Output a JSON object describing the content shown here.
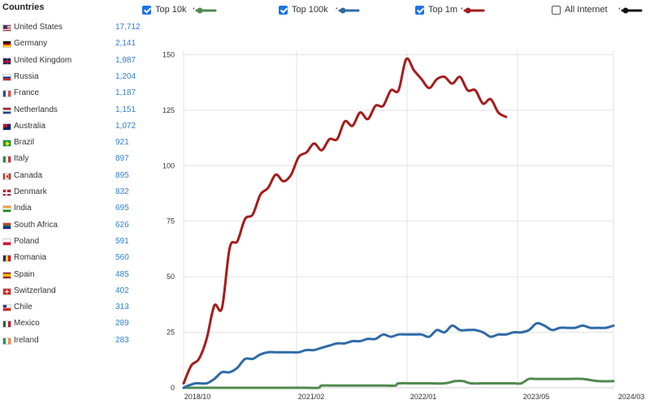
{
  "sidebar": {
    "title": "Countries",
    "countries": [
      {
        "name": "United States",
        "count": "17,712",
        "flag": "us"
      },
      {
        "name": "Germany",
        "count": "2,141",
        "flag": "de"
      },
      {
        "name": "United Kingdom",
        "count": "1,987",
        "flag": "gb"
      },
      {
        "name": "Russia",
        "count": "1,204",
        "flag": "ru"
      },
      {
        "name": "France",
        "count": "1,187",
        "flag": "fr"
      },
      {
        "name": "Netherlands",
        "count": "1,151",
        "flag": "nl"
      },
      {
        "name": "Australia",
        "count": "1,072",
        "flag": "au"
      },
      {
        "name": "Brazil",
        "count": "921",
        "flag": "br"
      },
      {
        "name": "Italy",
        "count": "897",
        "flag": "it"
      },
      {
        "name": "Canada",
        "count": "895",
        "flag": "ca"
      },
      {
        "name": "Denmark",
        "count": "832",
        "flag": "dk"
      },
      {
        "name": "India",
        "count": "695",
        "flag": "in"
      },
      {
        "name": "South Africa",
        "count": "626",
        "flag": "za"
      },
      {
        "name": "Poland",
        "count": "591",
        "flag": "pl"
      },
      {
        "name": "Romania",
        "count": "560",
        "flag": "ro"
      },
      {
        "name": "Spain",
        "count": "485",
        "flag": "es"
      },
      {
        "name": "Switzerland",
        "count": "402",
        "flag": "ch"
      },
      {
        "name": "Chile",
        "count": "313",
        "flag": "cl"
      },
      {
        "name": "Mexico",
        "count": "289",
        "flag": "mx"
      },
      {
        "name": "Ireland",
        "count": "283",
        "flag": "ie"
      }
    ]
  },
  "legend": [
    {
      "label": "Top 10k",
      "checked": true,
      "color": "#4f8a4f"
    },
    {
      "label": "Top 100k",
      "checked": true,
      "color": "#2e6aa8"
    },
    {
      "label": "Top 1m",
      "checked": true,
      "color": "#a51c1c"
    },
    {
      "label": "All Internet",
      "checked": false,
      "color": "#111111"
    }
  ],
  "chart_data": {
    "type": "line",
    "x_tick_labels": [
      "2018/10",
      "2021/02",
      "2022/01",
      "2023/05",
      "2024/03"
    ],
    "y_ticks": [
      0,
      25,
      50,
      75,
      100,
      125,
      150
    ],
    "ylim": [
      0,
      152
    ],
    "grid": true,
    "series": [
      {
        "name": "Top 10k",
        "color": "#4f8a4f",
        "points": [
          [
            0,
            0
          ],
          [
            10,
            0
          ],
          [
            20,
            0
          ],
          [
            30,
            0
          ],
          [
            40,
            0
          ],
          [
            50,
            0
          ],
          [
            60,
            0
          ],
          [
            70,
            0
          ],
          [
            80,
            0
          ],
          [
            88,
            0
          ],
          [
            90,
            1
          ],
          [
            100,
            1
          ],
          [
            110,
            1
          ],
          [
            120,
            1
          ],
          [
            130,
            1
          ],
          [
            138,
            1
          ],
          [
            140,
            2
          ],
          [
            150,
            2
          ],
          [
            160,
            2
          ],
          [
            170,
            2
          ],
          [
            177,
            3
          ],
          [
            182,
            3
          ],
          [
            187,
            2
          ],
          [
            195,
            2
          ],
          [
            200,
            2
          ],
          [
            205,
            2
          ],
          [
            210,
            2
          ],
          [
            215,
            2
          ],
          [
            220,
            2
          ],
          [
            225,
            4
          ],
          [
            230,
            4
          ],
          [
            240,
            4
          ],
          [
            250,
            4
          ],
          [
            260,
            4
          ],
          [
            270,
            3
          ],
          [
            280,
            3
          ]
        ]
      },
      {
        "name": "Top 100k",
        "color": "#2e6aa8",
        "points": [
          [
            0,
            0
          ],
          [
            3,
            1
          ],
          [
            8,
            2
          ],
          [
            15,
            2
          ],
          [
            20,
            4
          ],
          [
            25,
            7
          ],
          [
            30,
            7
          ],
          [
            35,
            9
          ],
          [
            40,
            13
          ],
          [
            45,
            13
          ],
          [
            50,
            15
          ],
          [
            55,
            16
          ],
          [
            60,
            16
          ],
          [
            65,
            16
          ],
          [
            70,
            16
          ],
          [
            75,
            16
          ],
          [
            80,
            17
          ],
          [
            85,
            17
          ],
          [
            90,
            18
          ],
          [
            95,
            19
          ],
          [
            100,
            20
          ],
          [
            105,
            20
          ],
          [
            110,
            21
          ],
          [
            115,
            21
          ],
          [
            120,
            22
          ],
          [
            125,
            22
          ],
          [
            130,
            24
          ],
          [
            135,
            23
          ],
          [
            140,
            24
          ],
          [
            145,
            24
          ],
          [
            150,
            24
          ],
          [
            155,
            24
          ],
          [
            160,
            23
          ],
          [
            165,
            26
          ],
          [
            170,
            25
          ],
          [
            175,
            28
          ],
          [
            180,
            26
          ],
          [
            185,
            26
          ],
          [
            190,
            26
          ],
          [
            195,
            25
          ],
          [
            200,
            23
          ],
          [
            205,
            24
          ],
          [
            210,
            24
          ],
          [
            215,
            25
          ],
          [
            220,
            25
          ],
          [
            225,
            26
          ],
          [
            230,
            29
          ],
          [
            235,
            28
          ],
          [
            240,
            26
          ],
          [
            245,
            27
          ],
          [
            250,
            27
          ],
          [
            255,
            27
          ],
          [
            260,
            28
          ],
          [
            265,
            27
          ],
          [
            270,
            27
          ],
          [
            275,
            27
          ],
          [
            280,
            28
          ]
        ]
      },
      {
        "name": "Top 1m",
        "color": "#a51c1c",
        "points": [
          [
            0,
            2
          ],
          [
            5,
            10
          ],
          [
            10,
            13
          ],
          [
            15,
            22
          ],
          [
            20,
            37
          ],
          [
            25,
            36
          ],
          [
            30,
            63
          ],
          [
            35,
            66
          ],
          [
            40,
            76
          ],
          [
            45,
            78
          ],
          [
            50,
            87
          ],
          [
            55,
            90
          ],
          [
            60,
            96
          ],
          [
            65,
            93
          ],
          [
            70,
            96
          ],
          [
            75,
            104
          ],
          [
            80,
            106
          ],
          [
            85,
            110
          ],
          [
            90,
            107
          ],
          [
            95,
            112
          ],
          [
            100,
            112
          ],
          [
            105,
            120
          ],
          [
            110,
            118
          ],
          [
            115,
            124
          ],
          [
            120,
            121
          ],
          [
            125,
            127
          ],
          [
            130,
            127
          ],
          [
            135,
            134
          ],
          [
            140,
            134
          ],
          [
            145,
            148
          ],
          [
            150,
            143
          ],
          [
            155,
            139
          ],
          [
            160,
            135
          ],
          [
            165,
            139
          ],
          [
            170,
            140
          ],
          [
            175,
            137
          ],
          [
            180,
            140
          ],
          [
            185,
            134
          ],
          [
            190,
            134
          ],
          [
            195,
            128
          ],
          [
            200,
            130
          ],
          [
            205,
            124
          ],
          [
            210,
            122
          ]
        ]
      }
    ]
  }
}
